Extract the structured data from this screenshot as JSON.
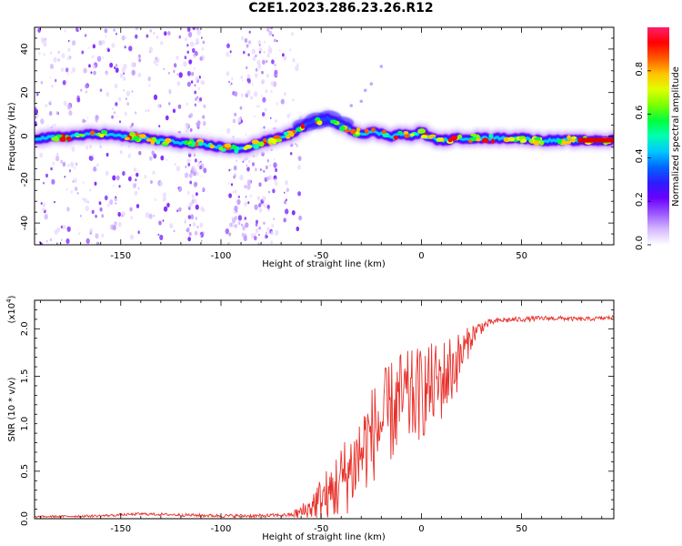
{
  "title": "C2E1.2023.286.23.26.R12",
  "chart_data": [
    {
      "type": "heatmap",
      "xlabel": "Height of straight line (km)",
      "ylabel": "Frequency (Hz)",
      "xlim": [
        -193,
        96
      ],
      "ylim": [
        -50,
        50
      ],
      "x_ticks": [
        -150,
        -100,
        -50,
        0,
        50
      ],
      "y_ticks": [
        -40,
        -20,
        0,
        20,
        40
      ],
      "colorbar": {
        "label": "Normalized spectral amplitude",
        "range": [
          0,
          1
        ],
        "ticks": [
          "0.0",
          "0.2",
          "0.4",
          "0.6",
          "0.8"
        ],
        "colormap": [
          "#ffffff",
          "#d6b8ff",
          "#9b59ff",
          "#6a00ff",
          "#2d1cff",
          "#0066ff",
          "#00c8ff",
          "#00ffb0",
          "#00ff3c",
          "#7dff00",
          "#e0ff00",
          "#ffc400",
          "#ff5a00",
          "#ff0000",
          "#ff1f6e"
        ]
      },
      "ridge": {
        "x": [
          -190,
          -175,
          -160,
          -150,
          -140,
          -130,
          -120,
          -110,
          -100,
          -90,
          -80,
          -72,
          -65,
          -58,
          -52,
          -46,
          -40,
          -35,
          -30,
          -25,
          -20,
          -15,
          -10,
          -5,
          0,
          5,
          10,
          20,
          30,
          40,
          50,
          60,
          70,
          80,
          90,
          96
        ],
        "freq": [
          -1,
          0,
          1,
          0,
          -1,
          -2,
          -3,
          -4,
          -5,
          -6,
          -3,
          -1,
          1,
          5,
          7,
          8,
          5,
          3,
          1,
          2,
          1,
          0,
          1,
          0,
          2,
          -1,
          -2,
          -1,
          -1,
          -1,
          -1,
          -2,
          -2,
          -2,
          -2,
          -2
        ]
      }
    },
    {
      "type": "line",
      "xlabel": "Height of straight line (km)",
      "ylabel": "SNR (10 * v/v)",
      "multiplier": "(x10",
      "multiplier_exp": "4",
      "multiplier_close": ")",
      "xlim": [
        -193,
        96
      ],
      "ylim": [
        0,
        2.3
      ],
      "x_ticks": [
        -150,
        -100,
        -50,
        0,
        50
      ],
      "y_ticks": [
        "0.0",
        "0.5",
        "1.0",
        "1.5",
        "2.0"
      ],
      "color": "#e8302a",
      "trend": {
        "x": [
          -193,
          -160,
          -140,
          -120,
          -100,
          -80,
          -65,
          -58,
          -54,
          -50,
          -46,
          -42,
          -38,
          -34,
          -30,
          -26,
          -22,
          -18,
          -14,
          -10,
          -6,
          -2,
          2,
          6,
          10,
          14,
          18,
          22,
          26,
          30,
          35,
          40,
          50,
          60,
          70,
          80,
          90,
          96
        ],
        "snr": [
          0.02,
          0.03,
          0.05,
          0.04,
          0.03,
          0.03,
          0.04,
          0.08,
          0.15,
          0.2,
          0.25,
          0.35,
          0.45,
          0.55,
          0.7,
          0.85,
          0.95,
          1.05,
          1.15,
          1.25,
          1.25,
          1.3,
          1.35,
          1.4,
          1.45,
          1.55,
          1.65,
          1.8,
          1.95,
          2.02,
          2.07,
          2.09,
          2.1,
          2.11,
          2.11,
          2.1,
          2.11,
          2.12
        ]
      },
      "noise_amplitude": {
        "x": [
          -193,
          -65,
          -55,
          -45,
          -30,
          -15,
          0,
          15,
          25,
          35,
          96
        ],
        "amp": [
          0.01,
          0.02,
          0.15,
          0.35,
          0.5,
          0.55,
          0.5,
          0.4,
          0.12,
          0.03,
          0.02
        ]
      }
    }
  ]
}
